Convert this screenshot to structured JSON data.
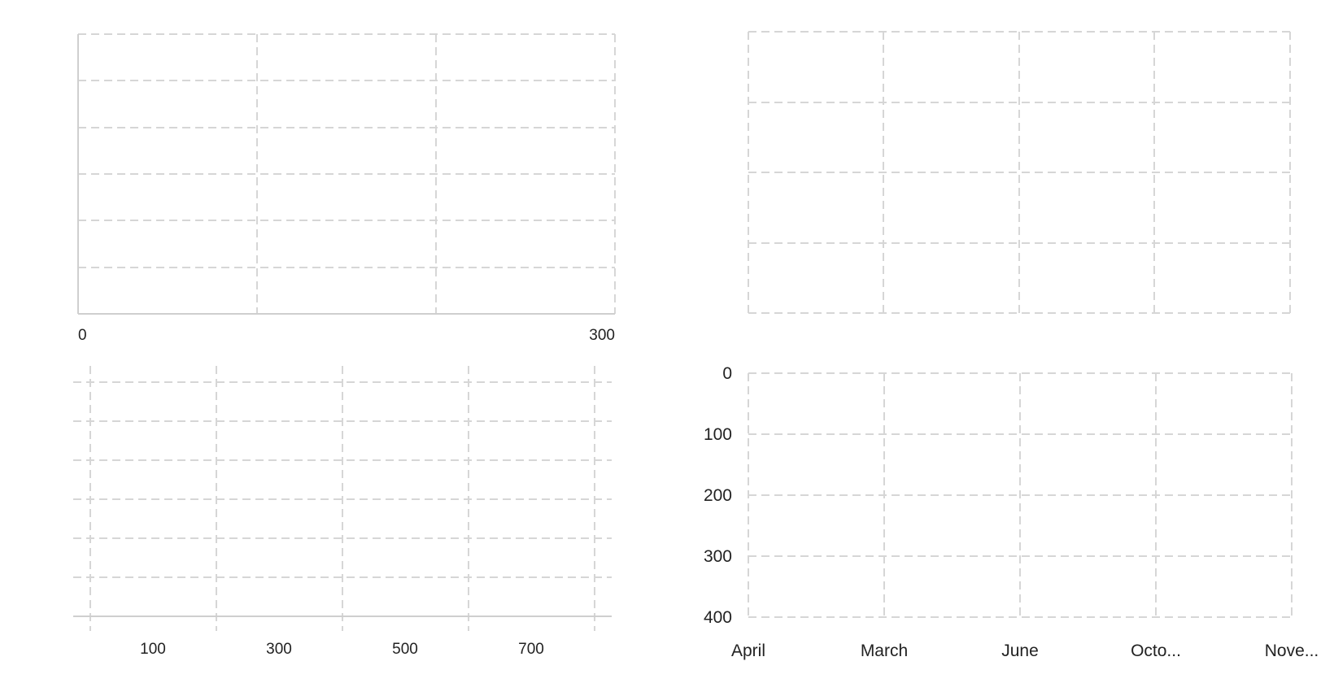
{
  "chart_data": [
    {
      "type": "line",
      "title": "",
      "xlabel": "",
      "ylabel": "",
      "x_tick_labels": [
        "0",
        "300"
      ],
      "xlim": [
        0,
        300
      ],
      "grid": true,
      "series": []
    },
    {
      "type": "line",
      "title": "",
      "xlabel": "",
      "ylabel": "",
      "grid": true,
      "series": []
    },
    {
      "type": "line",
      "title": "",
      "xlabel": "",
      "ylabel": "",
      "x_tick_labels": [
        "100",
        "300",
        "500",
        "700"
      ],
      "grid": true,
      "series": []
    },
    {
      "type": "line",
      "title": "",
      "xlabel": "",
      "ylabel": "",
      "categories": [
        "April",
        "March",
        "June",
        "Octo...",
        "Nove..."
      ],
      "y_tick_labels": [
        "0",
        "100",
        "200",
        "300",
        "400"
      ],
      "ylim": [
        0,
        400
      ],
      "y_inverted": true,
      "grid": true,
      "series": []
    }
  ]
}
